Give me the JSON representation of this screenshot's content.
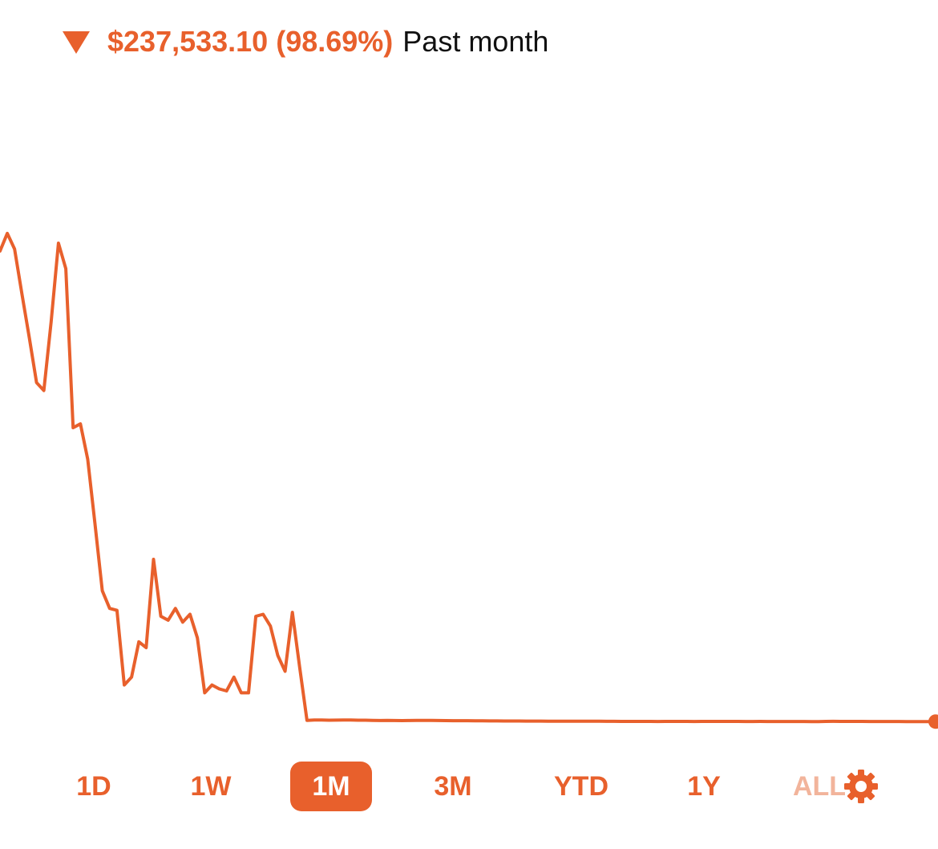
{
  "header": {
    "change_amount": "$237,533.10",
    "change_percent": "(98.69%)",
    "period_label": "Past month",
    "direction": "down"
  },
  "colors": {
    "accent": "#E8602C",
    "accent_faded": "#F2B49B",
    "background": "#FFFFFF"
  },
  "ranges": {
    "items": [
      "1D",
      "1W",
      "1M",
      "3M",
      "YTD",
      "1Y",
      "ALL"
    ],
    "selected": "1M"
  },
  "settings": {
    "icon": "gear-icon"
  },
  "chart_data": {
    "type": "line",
    "title": "",
    "xlabel": "",
    "ylabel": "",
    "grid": false,
    "legend": "none",
    "ylim": [
      0,
      255000
    ],
    "series": [
      {
        "values": [
          242000,
          251000,
          243000,
          220000,
          198000,
          175000,
          171000,
          206000,
          246000,
          233000,
          152000,
          154000,
          136000,
          103000,
          69000,
          60000,
          59000,
          21000,
          25000,
          43000,
          40000,
          85000,
          56000,
          54000,
          60000,
          53000,
          57000,
          45000,
          17000,
          21000,
          19000,
          18000,
          25000,
          17000,
          17000,
          56000,
          57000,
          51000,
          36000,
          28000,
          58000,
          30000,
          3000,
          3200,
          3150,
          3050,
          3120,
          3200,
          3180,
          3080,
          3050,
          2950,
          2920,
          2980,
          2900,
          2870,
          2890,
          2930,
          2950,
          2930,
          2900,
          2850,
          2830,
          2840,
          2810,
          2780,
          2760,
          2690,
          2680,
          2670,
          2650,
          2640,
          2630,
          2610,
          2600,
          2590,
          2580,
          2570,
          2560,
          2550,
          2540,
          2530,
          2520,
          2500,
          2480,
          2470,
          2460,
          2450,
          2440,
          2440,
          2430,
          2440,
          2440,
          2440,
          2440,
          2430,
          2450,
          2440,
          2450,
          2460,
          2470,
          2440,
          2430,
          2420,
          2440,
          2430,
          2420,
          2410,
          2410,
          2400,
          2400,
          2390,
          2380,
          2470,
          2480,
          2460,
          2450,
          2450,
          2440,
          2430,
          2420,
          2410,
          2400,
          2400,
          2390,
          2380,
          2380,
          2370,
          2360
        ]
      }
    ]
  }
}
